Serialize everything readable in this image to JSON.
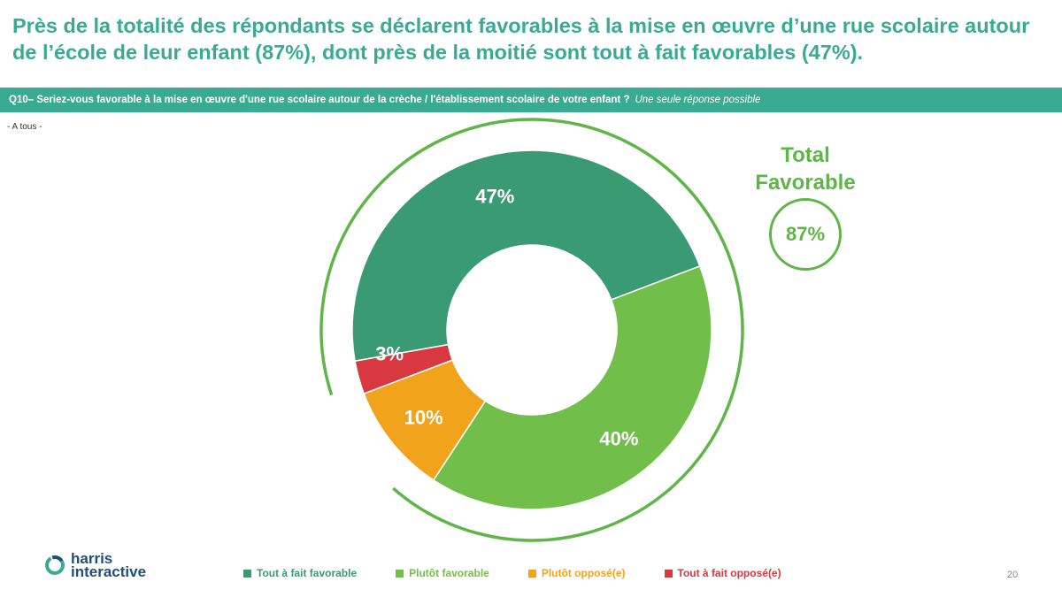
{
  "headline": "Près de la totalité des répondants se déclarent favorables à la mise en œuvre d’une rue scolaire autour de l’école de leur enfant (87%), dont près de la moitié sont tout à fait favorables (47%).",
  "question": {
    "text": "Q10– Seriez-vous favorable à la mise en œuvre d'une rue scolaire autour de la crèche / l'établissement scolaire de votre enfant ?",
    "note": "Une seule réponse possible"
  },
  "base_note": "- A tous -",
  "total": {
    "title_line1": "Total",
    "title_line2": "Favorable",
    "value": "87%"
  },
  "logo": {
    "line1": "harris",
    "line2": "interactive"
  },
  "page_number": "20",
  "colors": {
    "accent": "#3aab93",
    "total_green": "#5fb548",
    "logo_blue": "#1f4e79",
    "logo_teal": "#3aab93"
  },
  "chart_data": {
    "type": "pie",
    "donut": true,
    "categories": [
      "Tout à fait favorable",
      "Plutôt favorable",
      "Plutôt opposé(e)",
      "Tout à fait opposé(e)"
    ],
    "values": [
      47,
      40,
      10,
      3
    ],
    "labels": [
      "47%",
      "40%",
      "10%",
      "3%"
    ],
    "colors": [
      "#3a9a74",
      "#72be4b",
      "#f1a31c",
      "#d8383f"
    ],
    "legend_colors": [
      "#3a9a74",
      "#72be4b",
      "#f1a31c",
      "#d8383f"
    ],
    "legend_text_colors": [
      "#3a9a74",
      "#72be4b",
      "#f1a31c",
      "#d8383f"
    ],
    "legend_position": "bottom",
    "highlight_arc_total": 87
  }
}
